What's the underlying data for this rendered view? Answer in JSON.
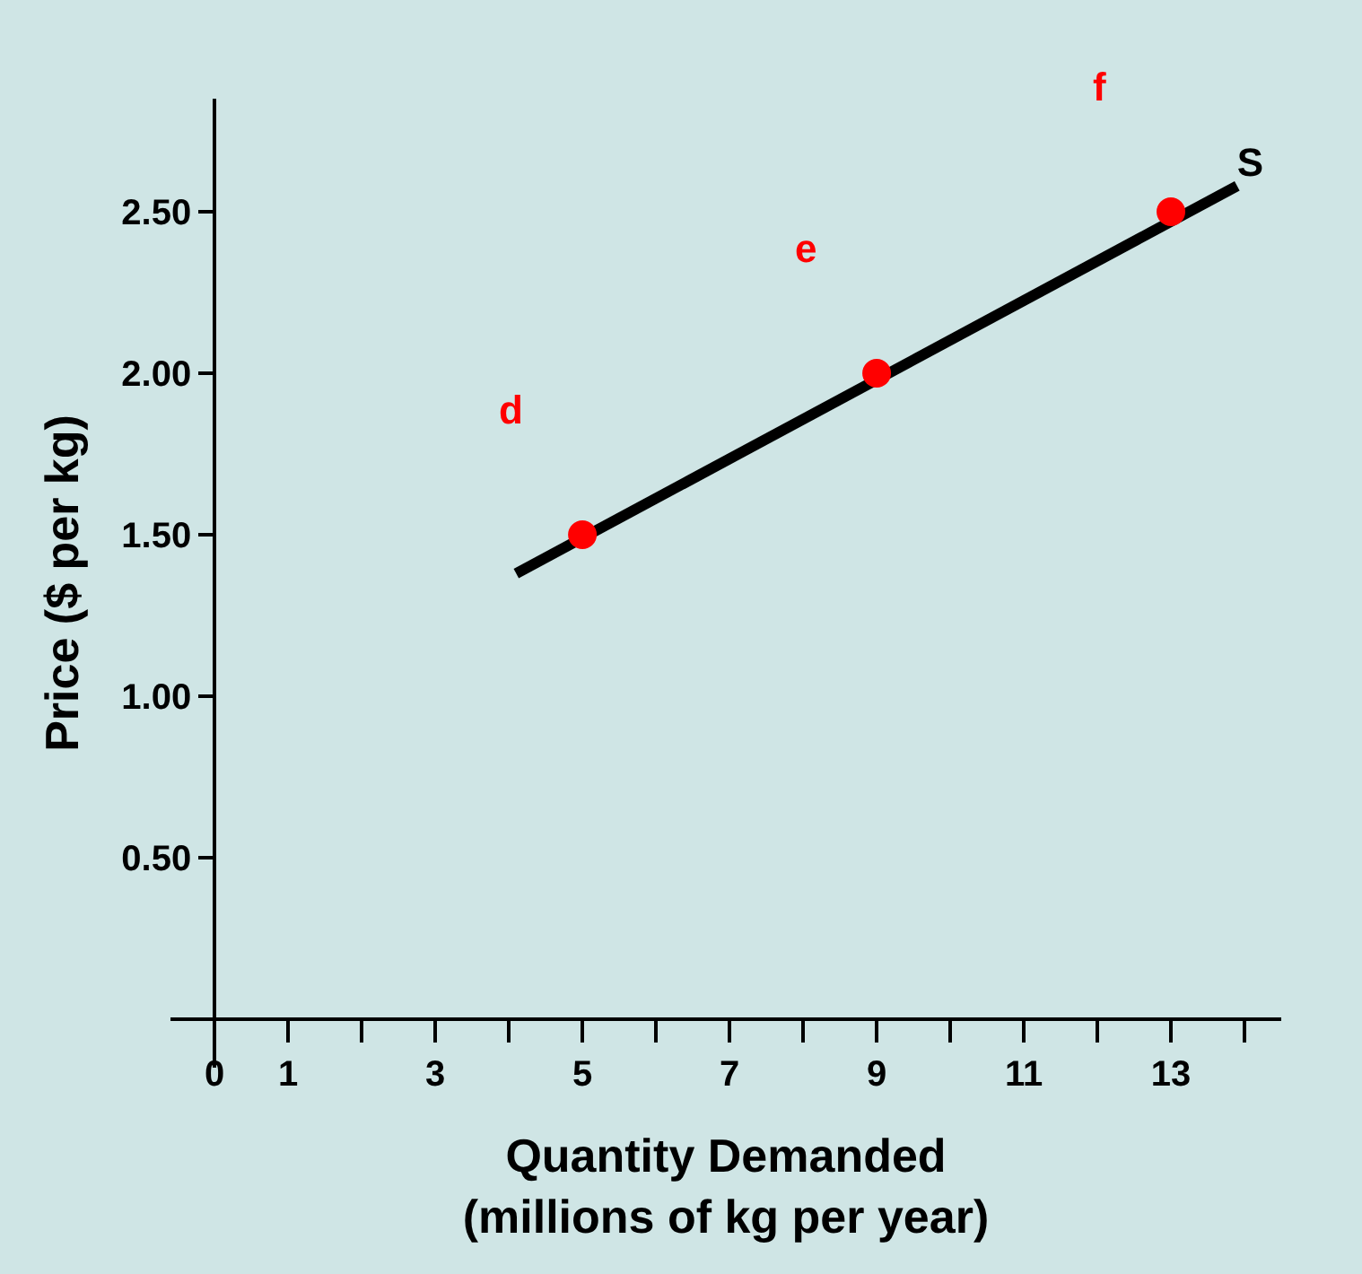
{
  "chart_data": {
    "type": "scatter",
    "xlabel": "Quantity Demanded\n(millions of kg per year)",
    "ylabel": "Price ($ per kg)",
    "xlim": [
      -0.6,
      14.5
    ],
    "ylim": [
      -0.15,
      2.85
    ],
    "xticks": [
      0,
      1,
      {
        "value": 2,
        "label": null
      },
      3,
      {
        "value": 4,
        "label": null
      },
      5,
      {
        "value": 6,
        "label": null
      },
      7,
      {
        "value": 8,
        "label": null
      },
      9,
      {
        "value": 10,
        "label": null
      },
      11,
      {
        "value": 12,
        "label": null
      },
      13,
      {
        "value": 14,
        "label": null
      }
    ],
    "yticks": [
      {
        "value": 0.5,
        "label": "0.50"
      },
      {
        "value": 1,
        "label": "1.00"
      },
      {
        "value": 1.5,
        "label": "1.50"
      },
      {
        "value": 2,
        "label": "2.00"
      },
      {
        "value": 2.5,
        "label": "2.50"
      }
    ],
    "grid": false,
    "legend": false,
    "series": [
      {
        "type": "line",
        "name": "S",
        "color": "#000000",
        "x": [
          4.1,
          13.9
        ],
        "values": [
          1.38,
          2.58
        ],
        "marker": "none",
        "line_style": "solid"
      },
      {
        "color": "#ff0000",
        "x": [
          5,
          9,
          13
        ],
        "values": [
          1.5,
          2.0,
          2.5
        ],
        "marker": "circle",
        "value_labels": [
          "d",
          "e",
          "f"
        ]
      }
    ]
  }
}
